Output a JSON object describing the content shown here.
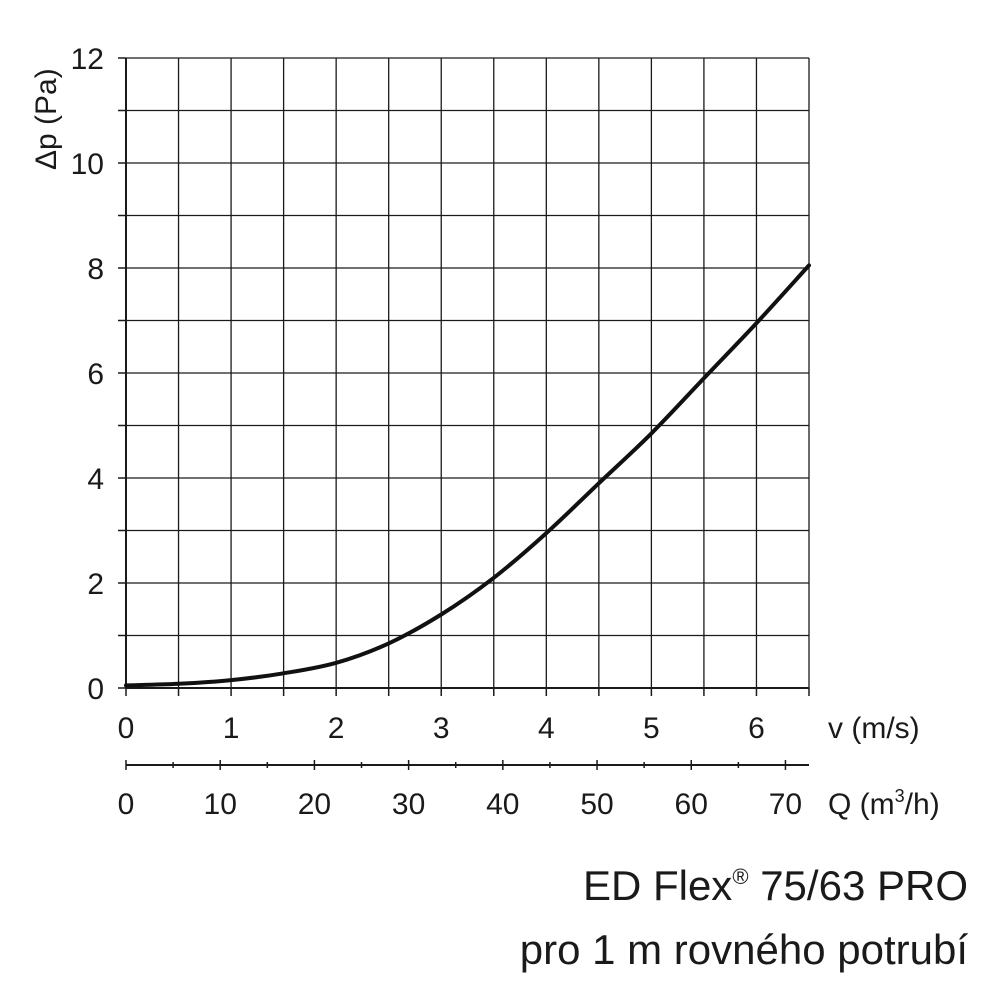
{
  "chart_data": {
    "type": "line",
    "title_line1_prefix": "ED Flex",
    "title_line1_symbol": "®",
    "title_line1_suffix": " 75/63 PRO",
    "title_line2": "pro 1 m rovného potrubí",
    "ylabel": "Δp (Pa)",
    "ylim": [
      0,
      12
    ],
    "y_ticks": [
      "0",
      "2",
      "4",
      "6",
      "8",
      "10",
      "12"
    ],
    "x_axes": [
      {
        "label": "v (m/s)",
        "range": [
          0,
          6.5
        ],
        "ticks": [
          "0",
          "1",
          "2",
          "3",
          "4",
          "5",
          "6"
        ]
      },
      {
        "label_prefix": "Q (m",
        "label_sup": "3",
        "label_suffix": "/h)",
        "range": [
          0,
          72.5
        ],
        "ticks": [
          "0",
          "10",
          "20",
          "30",
          "40",
          "50",
          "60",
          "70"
        ]
      }
    ],
    "grid": true,
    "series": [
      {
        "color": "#111111",
        "x": [
          0,
          0.5,
          1.0,
          1.5,
          2.0,
          2.5,
          3.0,
          3.5,
          4.0,
          4.5,
          5.0,
          5.5,
          6.0,
          6.5
        ],
        "y": [
          0.05,
          0.08,
          0.15,
          0.28,
          0.48,
          0.85,
          1.4,
          2.1,
          2.95,
          3.9,
          4.85,
          5.9,
          6.95,
          8.05
        ]
      }
    ]
  }
}
